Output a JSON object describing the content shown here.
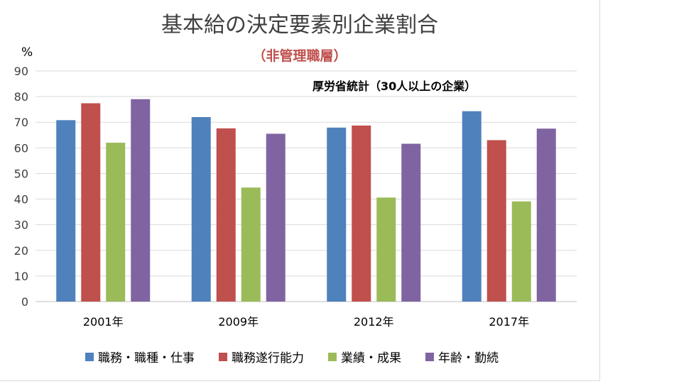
{
  "chart_data": {
    "type": "bar",
    "title": "基本給の決定要素別企業割合",
    "subtitle": "（非管理職層）",
    "ylabel": "%",
    "note": "厚労省統計（30人以上の企業）",
    "ylim": [
      0,
      90
    ],
    "yticks": [
      0,
      10,
      20,
      30,
      40,
      50,
      60,
      70,
      80,
      90
    ],
    "categories": [
      "2001年",
      "2009年",
      "2012年",
      "2017年"
    ],
    "series": [
      {
        "name": "職務・職種・仕事",
        "color": "#4f81bd",
        "values": [
          70.8,
          72.0,
          67.9,
          74.3
        ]
      },
      {
        "name": "職務遂行能力",
        "color": "#c0504d",
        "values": [
          77.4,
          67.6,
          68.7,
          63.0
        ]
      },
      {
        "name": "業績・成果",
        "color": "#9bbb59",
        "values": [
          62.0,
          44.5,
          40.6,
          39.1
        ]
      },
      {
        "name": "年齢・勤続",
        "color": "#8064a2",
        "values": [
          79.0,
          65.5,
          61.6,
          67.5
        ]
      }
    ],
    "grid": true,
    "legend_position": "bottom"
  }
}
